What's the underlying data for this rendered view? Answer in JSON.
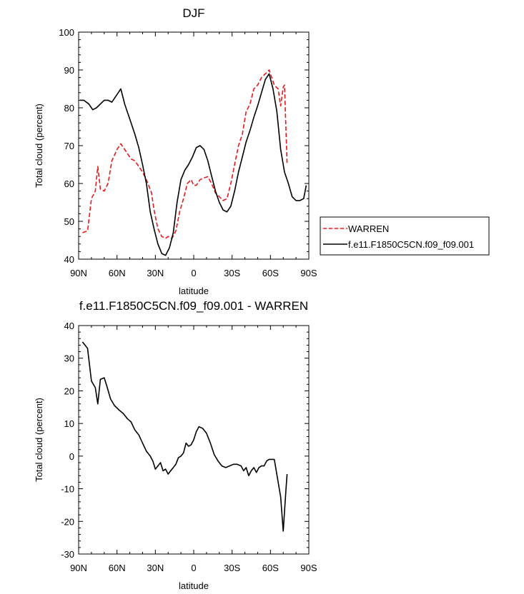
{
  "chart_data": [
    {
      "type": "line",
      "title": "DJF",
      "xlabel": "latitude",
      "ylabel": "Total cloud (percent)",
      "xlim": [
        -90,
        90
      ],
      "ylim": [
        40,
        100
      ],
      "x_ticks": [
        -90,
        -60,
        -30,
        0,
        30,
        60,
        90
      ],
      "x_tick_labels": [
        "90N",
        "60N",
        "30N",
        "0",
        "30S",
        "60S",
        "90S"
      ],
      "y_ticks": [
        40,
        50,
        60,
        70,
        80,
        90,
        100
      ],
      "y_tick_labels": [
        "40",
        "50",
        "60",
        "70",
        "80",
        "90",
        "100"
      ],
      "legend_position": "right",
      "series": [
        {
          "name": "WARREN",
          "color": "#e41a1c",
          "dash": "dashed",
          "x": [
            -87,
            -83,
            -80,
            -77,
            -75,
            -73,
            -70,
            -67,
            -64,
            -60,
            -57,
            -53,
            -49,
            -46,
            -43,
            -40,
            -37,
            -33,
            -31,
            -28,
            -25,
            -22,
            -20,
            -17,
            -14,
            -11,
            -8,
            -5,
            -2,
            0,
            2,
            5,
            8,
            11,
            14,
            17,
            20,
            23,
            26,
            29,
            32,
            35,
            38,
            41,
            44,
            47,
            50,
            53,
            56,
            59,
            61,
            63,
            66,
            68,
            70,
            71,
            73
          ],
          "y": [
            47,
            47.5,
            56,
            58,
            64.5,
            58.5,
            58,
            60,
            66,
            69,
            70.5,
            68.5,
            66.5,
            66,
            64.5,
            63,
            61,
            57.5,
            53,
            48,
            46,
            45.5,
            46,
            45.5,
            47.5,
            52.5,
            56,
            60,
            61,
            59.5,
            59.5,
            61,
            61.5,
            61.8,
            60,
            57.5,
            56.5,
            55.5,
            56,
            60,
            65,
            70,
            73,
            79,
            81,
            85,
            86,
            88,
            89,
            90,
            88,
            86,
            85,
            80.5,
            85.5,
            86,
            65
          ]
        },
        {
          "name": "f.e11.F1850C5CN.f09_f09.001",
          "color": "#000000",
          "dash": "solid",
          "x": [
            -89,
            -86,
            -82,
            -79,
            -76,
            -73,
            -70,
            -67,
            -64,
            -61,
            -57,
            -54,
            -50,
            -46,
            -43,
            -40,
            -37,
            -34,
            -31,
            -28,
            -25,
            -22,
            -19,
            -16,
            -13,
            -10,
            -7,
            -4,
            -1,
            2,
            5,
            8,
            11,
            14,
            17,
            20,
            23,
            26,
            29,
            32,
            35,
            38,
            41,
            44,
            47,
            50,
            53,
            56,
            59,
            62,
            65,
            68,
            71,
            74,
            77,
            80,
            83,
            86,
            88
          ],
          "y": [
            82,
            82,
            81,
            79.5,
            80,
            81,
            82,
            82,
            81.5,
            83,
            85,
            81,
            77,
            73,
            69.5,
            65,
            60,
            52.5,
            48,
            44,
            41.5,
            41,
            43,
            47,
            55,
            61,
            63.5,
            65,
            67,
            69.5,
            70,
            69,
            66,
            62,
            58,
            55,
            53,
            52.5,
            54,
            58,
            63,
            67,
            71,
            74,
            77.5,
            80.5,
            84,
            87.5,
            89,
            85,
            79,
            69,
            63,
            60,
            56.5,
            55.5,
            55.5,
            56,
            59.5
          ]
        }
      ]
    },
    {
      "type": "line",
      "title": "f.e11.F1850C5CN.f09_f09.001 - WARREN",
      "xlabel": "latitude",
      "ylabel": "Total cloud (percent)",
      "xlim": [
        -90,
        90
      ],
      "ylim": [
        -30,
        40
      ],
      "x_ticks": [
        -90,
        -60,
        -30,
        0,
        30,
        60,
        90
      ],
      "x_tick_labels": [
        "90N",
        "60N",
        "30N",
        "0",
        "30S",
        "60S",
        "90S"
      ],
      "y_ticks": [
        -30,
        -20,
        -10,
        0,
        10,
        20,
        30,
        40
      ],
      "y_tick_labels": [
        "-30",
        "-20",
        "-10",
        "0",
        "10",
        "20",
        "30",
        "40"
      ],
      "series": [
        {
          "color": "#000000",
          "dash": "solid",
          "x": [
            -87,
            -83,
            -80,
            -77,
            -75,
            -73,
            -70,
            -68,
            -65,
            -62,
            -58,
            -55,
            -52,
            -49,
            -46,
            -43,
            -40,
            -37,
            -34,
            -32,
            -30,
            -28,
            -26,
            -24,
            -22,
            -20,
            -18,
            -16,
            -14,
            -12,
            -10,
            -8,
            -6,
            -4,
            -2,
            0,
            2,
            4,
            7,
            10,
            13,
            16,
            19,
            22,
            25,
            28,
            31,
            34,
            37,
            39,
            41,
            43,
            45,
            47,
            49,
            51,
            53,
            55,
            57,
            59,
            61,
            63,
            66,
            68,
            70,
            72,
            73
          ],
          "y": [
            35,
            33,
            23,
            21,
            16,
            23.5,
            24,
            21.5,
            17.5,
            15.5,
            14,
            13,
            11.5,
            10.5,
            8,
            6.5,
            4,
            1.5,
            0,
            -1.5,
            -4,
            -3,
            -2,
            -4.5,
            -4,
            -5.5,
            -4.5,
            -3.5,
            -2.5,
            -0.5,
            0,
            1,
            4,
            3,
            3.5,
            5,
            7.5,
            9,
            8.5,
            7,
            4,
            0.5,
            -1.5,
            -3,
            -3.5,
            -3,
            -2.5,
            -2.5,
            -3,
            -4.5,
            -3.5,
            -6,
            -4.5,
            -3.5,
            -5,
            -3.5,
            -3,
            -3,
            -1.5,
            -1,
            -1,
            -1,
            -8,
            -12.5,
            -23,
            -11,
            -5.5
          ]
        }
      ]
    }
  ]
}
